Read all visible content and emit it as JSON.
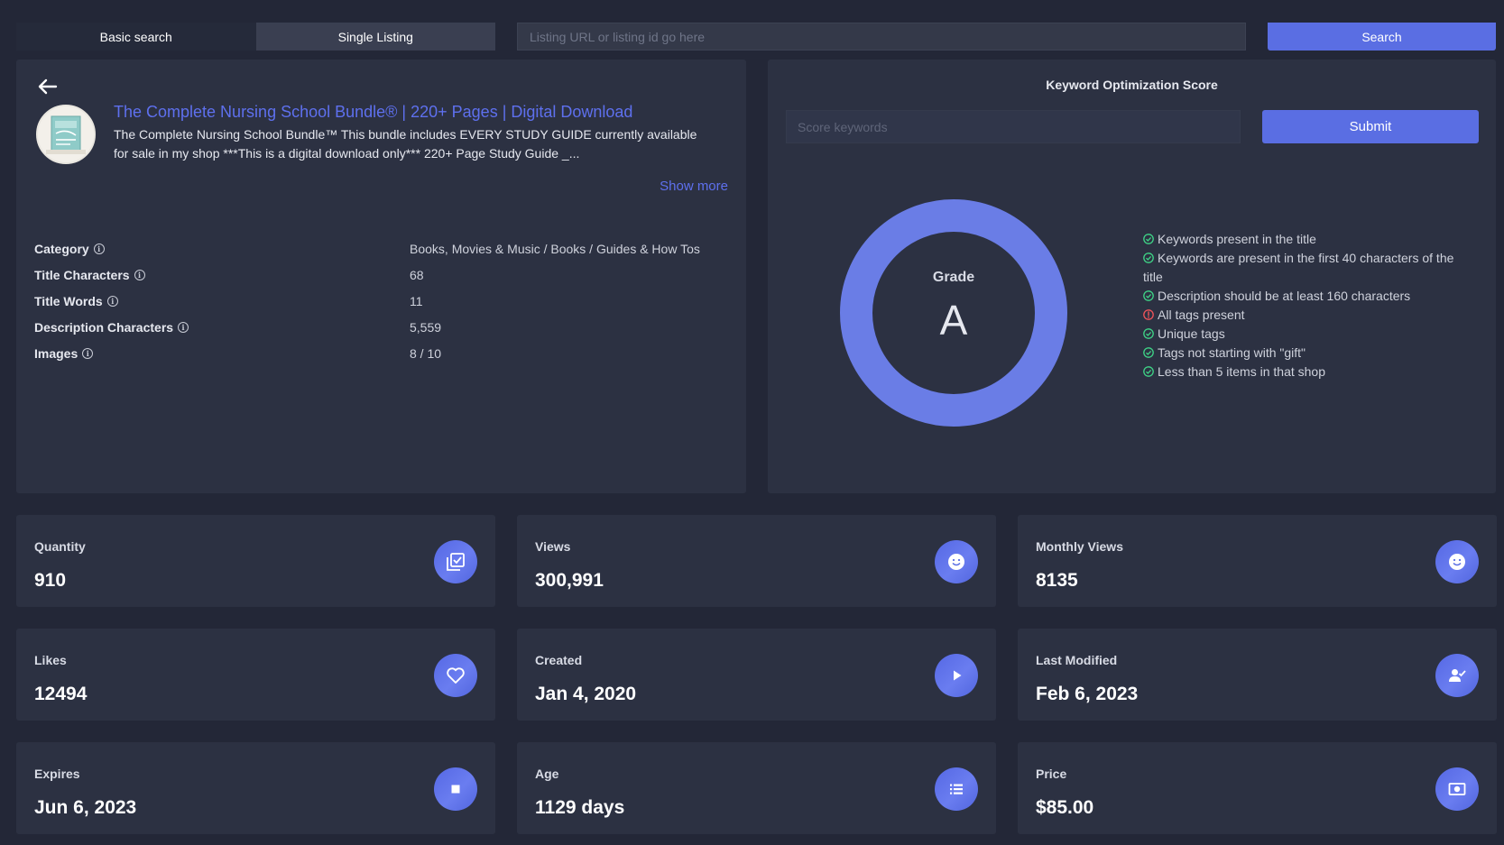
{
  "tabs": [
    {
      "label": "Basic search"
    },
    {
      "label": "Single Listing"
    }
  ],
  "search": {
    "placeholder": "Listing URL or listing id go here",
    "button_label": "Search"
  },
  "listing": {
    "title": "The Complete Nursing School Bundle® | 220+ Pages | Digital Download",
    "description": "The Complete Nursing School Bundle™ This bundle includes EVERY STUDY GUIDE currently available for sale in my shop ***This is a digital download only*** 220+ Page Study Guide _...",
    "show_more": "Show more",
    "meta": [
      {
        "label": "Category",
        "value": "Books, Movies & Music / Books / Guides & How Tos"
      },
      {
        "label": "Title Characters",
        "value": "68"
      },
      {
        "label": "Title Words",
        "value": "11"
      },
      {
        "label": "Description Characters",
        "value": "5,559"
      },
      {
        "label": "Images",
        "value": "8 / 10"
      }
    ]
  },
  "keyword": {
    "title": "Keyword Optimization Score",
    "placeholder": "Score keywords",
    "submit_label": "Submit",
    "grade_label": "Grade",
    "grade": "A",
    "checks": [
      {
        "text": "Keywords present in the title",
        "status": "pass"
      },
      {
        "text": "Keywords are present in the first 40 characters of the title",
        "status": "pass"
      },
      {
        "text": "Description should be at least 160 characters",
        "status": "pass"
      },
      {
        "text": "All tags present",
        "status": "fail"
      },
      {
        "text": "Unique tags",
        "status": "pass"
      },
      {
        "text": "Tags not starting with \"gift\"",
        "status": "pass"
      },
      {
        "text": "Less than 5 items in that shop",
        "status": "pass"
      }
    ]
  },
  "stats": [
    {
      "label": "Quantity",
      "value": "910",
      "icon": "check-copy-icon"
    },
    {
      "label": "Views",
      "value": "300,991",
      "icon": "smile-icon"
    },
    {
      "label": "Monthly Views",
      "value": "8135",
      "icon": "smile-icon"
    },
    {
      "label": "Likes",
      "value": "12494",
      "icon": "heart-icon"
    },
    {
      "label": "Created",
      "value": "Jan 4, 2020",
      "icon": "play-icon"
    },
    {
      "label": "Last Modified",
      "value": "Feb 6, 2023",
      "icon": "user-check-icon"
    },
    {
      "label": "Expires",
      "value": "Jun 6, 2023",
      "icon": "stop-icon"
    },
    {
      "label": "Age",
      "value": "1129 days",
      "icon": "list-icon"
    },
    {
      "label": "Price",
      "value": "$85.00",
      "icon": "money-icon"
    }
  ],
  "colors": {
    "background": "#232737",
    "panel": "#2c3142",
    "accent": "#5a6ee3",
    "link": "#5e70ee",
    "pass": "#3fd487",
    "fail": "#f0545a"
  }
}
